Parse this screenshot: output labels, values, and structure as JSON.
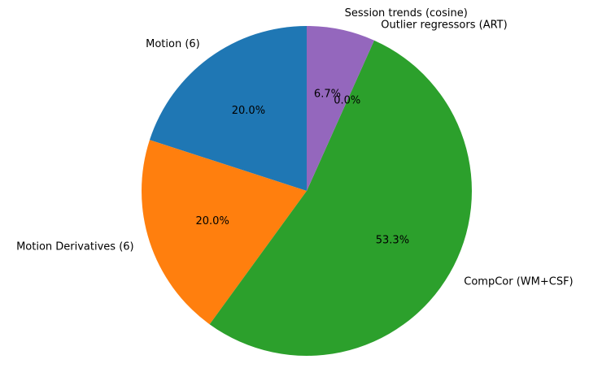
{
  "chart_data": {
    "type": "pie",
    "title": "",
    "start_angle_deg": 90,
    "direction": "counterclockwise",
    "legend": "none",
    "slices": [
      {
        "label": "Motion (6)",
        "value": 20.0,
        "pct_label": "20.0%",
        "color": "#1f77b4"
      },
      {
        "label": "Motion Derivatives (6)",
        "value": 20.0,
        "pct_label": "20.0%",
        "color": "#ff7f0e"
      },
      {
        "label": "CompCor (WM+CSF)",
        "value": 53.3,
        "pct_label": "53.3%",
        "color": "#2ca02c"
      },
      {
        "label": "Outlier regressors (ART)",
        "value": 0.0,
        "pct_label": "0.0%",
        "color": "#d62728"
      },
      {
        "label": "Session trends (cosine)",
        "value": 6.7,
        "pct_label": "6.7%",
        "color": "#9467bd"
      }
    ]
  }
}
